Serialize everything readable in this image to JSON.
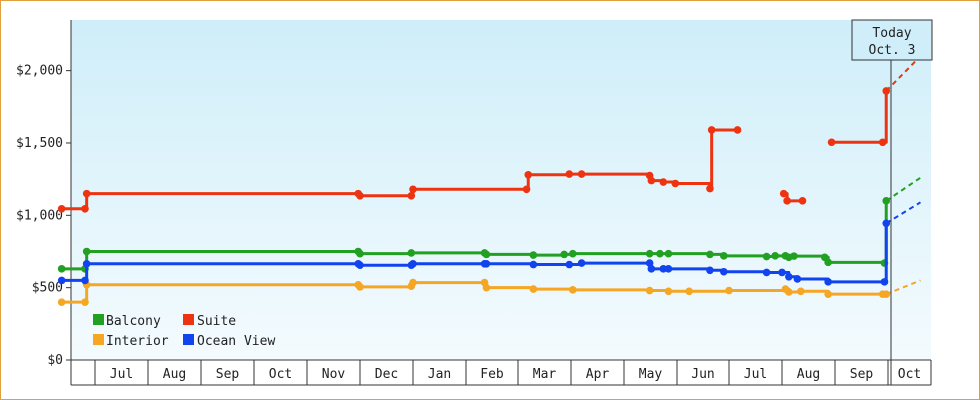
{
  "chart_data": {
    "type": "line",
    "title": "",
    "xlabel": "",
    "ylabel": "",
    "y_ticks": [
      "$0",
      "$500",
      "$1,000",
      "$1,500",
      "$2,000"
    ],
    "ylim": [
      0,
      2350
    ],
    "x_ticks": [
      "Jul",
      "Aug",
      "Sep",
      "Oct",
      "Nov",
      "Dec",
      "Jan",
      "Feb",
      "Mar",
      "Apr",
      "May",
      "Jun",
      "Jul",
      "Aug",
      "Sep",
      "Oct"
    ],
    "today_marker": {
      "line1": "Today",
      "line2": "Oct. 3"
    },
    "legend_position": "bottom-left",
    "grid": false,
    "series": [
      {
        "name": "Balcony",
        "color": "#22a022",
        "points": [
          [
            "2014-06-11",
            630
          ],
          [
            "2014-06-25",
            630
          ],
          [
            "2014-06-26",
            750
          ],
          [
            "2014-11-30",
            750
          ],
          [
            "2014-12-01",
            735
          ],
          [
            "2014-12-31",
            740
          ],
          [
            "2015-02-11",
            740
          ],
          [
            "2015-02-12",
            730
          ],
          [
            "2015-03-10",
            725
          ],
          [
            "2015-03-28",
            730
          ],
          [
            "2015-04-02",
            735
          ],
          [
            "2015-05-16",
            735
          ],
          [
            "2015-05-22",
            735
          ],
          [
            "2015-05-27",
            735
          ],
          [
            "2015-06-20",
            730
          ],
          [
            "2015-06-28",
            720
          ],
          [
            "2015-07-23",
            715
          ],
          [
            "2015-07-28",
            720
          ],
          [
            "2015-08-03",
            720
          ],
          [
            "2015-08-05",
            710
          ],
          [
            "2015-08-08",
            718
          ],
          [
            "2015-08-26",
            710
          ],
          [
            "2015-08-28",
            675
          ],
          [
            "2015-09-29",
            670
          ],
          [
            "2015-09-30",
            1100
          ]
        ],
        "projection": [
          [
            "2015-09-30",
            1100
          ],
          [
            "2015-10-20",
            1260
          ]
        ]
      },
      {
        "name": "Suite",
        "color": "#ee3311",
        "points": [
          [
            "2014-06-11",
            1045
          ],
          [
            "2014-06-25",
            1045
          ],
          [
            "2014-06-26",
            1150
          ],
          [
            "2014-11-30",
            1150
          ],
          [
            "2014-12-01",
            1135
          ],
          [
            "2014-12-31",
            1135
          ],
          [
            "2015-01-01",
            1180
          ],
          [
            "2015-03-06",
            1180
          ],
          [
            "2015-03-07",
            1280
          ],
          [
            "2015-03-31",
            1285
          ],
          [
            "2015-04-07",
            1285
          ],
          [
            "2015-05-16",
            1275
          ],
          [
            "2015-05-17",
            1240
          ],
          [
            "2015-05-24",
            1230
          ],
          [
            "2015-05-31",
            1220
          ],
          [
            "2015-06-20",
            1185
          ],
          [
            "2015-06-21",
            1590
          ],
          [
            "2015-07-06",
            1590
          ]
        ],
        "segments_after_gap": [
          [
            [
              "2015-08-02",
              1150
            ],
            [
              "2015-08-04",
              1100
            ],
            [
              "2015-08-13",
              1100
            ]
          ],
          [
            [
              "2015-08-30",
              1505
            ],
            [
              "2015-09-28",
              1505
            ],
            [
              "2015-09-30",
              1860
            ]
          ]
        ],
        "projection": [
          [
            "2015-09-30",
            1860
          ],
          [
            "2015-10-20",
            2100
          ]
        ]
      },
      {
        "name": "Interior",
        "color": "#f5a623",
        "points": [
          [
            "2014-06-11",
            400
          ],
          [
            "2014-06-25",
            400
          ],
          [
            "2014-06-26",
            520
          ],
          [
            "2014-11-30",
            520
          ],
          [
            "2014-12-01",
            505
          ],
          [
            "2014-12-31",
            510
          ],
          [
            "2015-01-01",
            535
          ],
          [
            "2015-02-11",
            535
          ],
          [
            "2015-02-12",
            500
          ],
          [
            "2015-03-10",
            490
          ],
          [
            "2015-04-02",
            485
          ],
          [
            "2015-05-16",
            480
          ],
          [
            "2015-05-27",
            475
          ],
          [
            "2015-06-08",
            475
          ],
          [
            "2015-07-01",
            480
          ],
          [
            "2015-08-03",
            490
          ],
          [
            "2015-08-05",
            470
          ],
          [
            "2015-08-12",
            475
          ],
          [
            "2015-08-28",
            455
          ],
          [
            "2015-09-28",
            455
          ],
          [
            "2015-09-30",
            455
          ]
        ],
        "projection": [
          [
            "2015-09-30",
            455
          ],
          [
            "2015-10-20",
            550
          ]
        ]
      },
      {
        "name": "Ocean View",
        "color": "#1144ee",
        "points": [
          [
            "2014-06-11",
            550
          ],
          [
            "2014-06-25",
            550
          ],
          [
            "2014-06-26",
            665
          ],
          [
            "2014-11-30",
            665
          ],
          [
            "2014-12-01",
            655
          ],
          [
            "2014-12-31",
            655
          ],
          [
            "2015-01-01",
            665
          ],
          [
            "2015-02-11",
            665
          ],
          [
            "2015-02-12",
            665
          ],
          [
            "2015-03-10",
            660
          ],
          [
            "2015-03-31",
            660
          ],
          [
            "2015-04-07",
            670
          ],
          [
            "2015-05-16",
            670
          ],
          [
            "2015-05-17",
            630
          ],
          [
            "2015-05-24",
            630
          ],
          [
            "2015-05-27",
            630
          ],
          [
            "2015-06-20",
            620
          ],
          [
            "2015-06-28",
            610
          ],
          [
            "2015-07-23",
            605
          ],
          [
            "2015-08-01",
            605
          ],
          [
            "2015-08-05",
            575
          ],
          [
            "2015-08-10",
            560
          ],
          [
            "2015-08-28",
            540
          ],
          [
            "2015-09-29",
            540
          ],
          [
            "2015-09-30",
            945
          ]
        ],
        "projection": [
          [
            "2015-09-30",
            945
          ],
          [
            "2015-10-20",
            1090
          ]
        ]
      }
    ]
  }
}
